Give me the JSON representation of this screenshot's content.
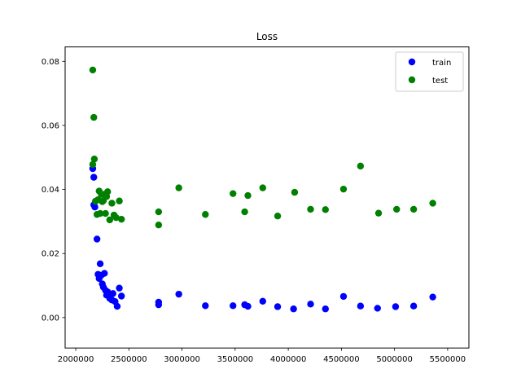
{
  "chart_data": {
    "type": "scatter",
    "title": "Loss",
    "xlabel": "",
    "ylabel": "",
    "xlim": [
      1900000,
      5700000
    ],
    "ylim": [
      -0.0095,
      0.0845
    ],
    "xticks": [
      2000000,
      2500000,
      3000000,
      3500000,
      4000000,
      4500000,
      5000000,
      5500000
    ],
    "xtick_labels": [
      "2000000",
      "2500000",
      "3000000",
      "3500000",
      "4000000",
      "4500000",
      "5000000",
      "5500000"
    ],
    "yticks": [
      0.0,
      0.02,
      0.04,
      0.06,
      0.08
    ],
    "ytick_labels": [
      "0.00",
      "0.02",
      "0.04",
      "0.06",
      "0.08"
    ],
    "grid": false,
    "legend": "top-right",
    "series": [
      {
        "name": "train",
        "color": "#0000ff",
        "x": [
          2160000,
          2170000,
          2170000,
          2180000,
          2200000,
          2210000,
          2220000,
          2230000,
          2240000,
          2250000,
          2260000,
          2270000,
          2280000,
          2290000,
          2300000,
          2310000,
          2320000,
          2340000,
          2350000,
          2370000,
          2390000,
          2410000,
          2430000,
          2780000,
          2780000,
          2970000,
          3220000,
          3480000,
          3590000,
          3620000,
          3760000,
          3900000,
          4050000,
          4210000,
          4350000,
          4520000,
          4680000,
          4840000,
          5010000,
          5180000,
          5360000
        ],
        "y": [
          0.0465,
          0.0438,
          0.0352,
          0.0345,
          0.0245,
          0.0135,
          0.0122,
          0.0168,
          0.0132,
          0.0105,
          0.0095,
          0.0138,
          0.0085,
          0.007,
          0.008,
          0.0075,
          0.006,
          0.0055,
          0.0075,
          0.005,
          0.0035,
          0.0092,
          0.0067,
          0.0048,
          0.004,
          0.0073,
          0.0037,
          0.0037,
          0.004,
          0.0035,
          0.0051,
          0.0034,
          0.0027,
          0.0042,
          0.0027,
          0.0066,
          0.0036,
          0.0029,
          0.0034,
          0.0036,
          0.0064
        ]
      },
      {
        "name": "test",
        "color": "#008000",
        "x": [
          2160000,
          2170000,
          2160000,
          2175000,
          2185000,
          2200000,
          2210000,
          2220000,
          2230000,
          2240000,
          2250000,
          2260000,
          2270000,
          2280000,
          2290000,
          2300000,
          2320000,
          2340000,
          2360000,
          2380000,
          2410000,
          2430000,
          2780000,
          2780000,
          2970000,
          3220000,
          3480000,
          3590000,
          3620000,
          3760000,
          3900000,
          4060000,
          4210000,
          4350000,
          4520000,
          4680000,
          4850000,
          5020000,
          5180000,
          5360000
        ],
        "y": [
          0.0773,
          0.0625,
          0.0478,
          0.0495,
          0.0363,
          0.0322,
          0.0368,
          0.0395,
          0.0325,
          0.0385,
          0.0362,
          0.0365,
          0.0385,
          0.0325,
          0.0378,
          0.0393,
          0.0305,
          0.0357,
          0.032,
          0.0312,
          0.0364,
          0.0307,
          0.033,
          0.0289,
          0.0405,
          0.0322,
          0.0387,
          0.033,
          0.0381,
          0.0405,
          0.0317,
          0.0391,
          0.0338,
          0.0337,
          0.0401,
          0.0473,
          0.0326,
          0.0338,
          0.0338,
          0.0357
        ]
      }
    ]
  }
}
